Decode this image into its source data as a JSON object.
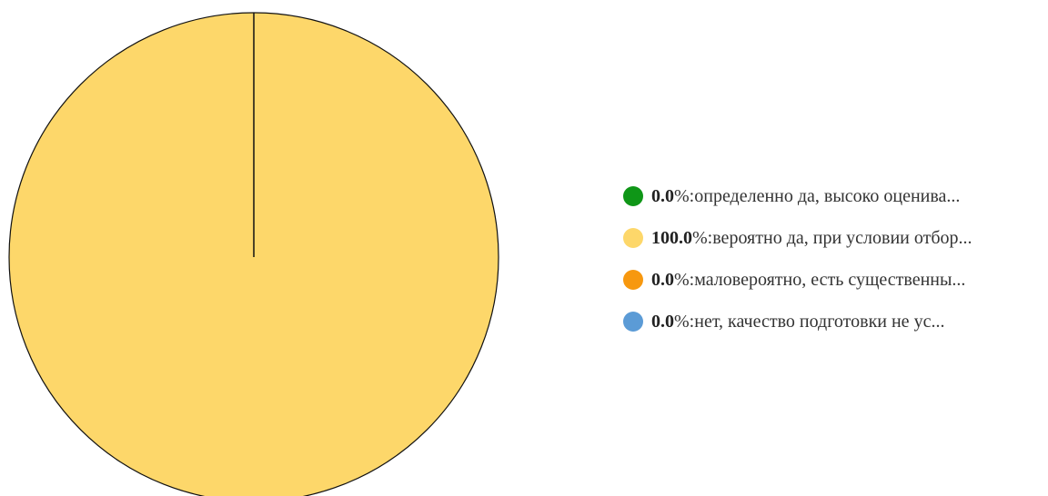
{
  "chart_data": {
    "type": "pie",
    "categories": [
      "определенно да, высоко оценива...",
      "вероятно да, при условии отбор...",
      "маловероятно, есть существенны...",
      "нет, качество подготовки не ус..."
    ],
    "values": [
      0.0,
      100.0,
      0.0,
      0.0
    ],
    "value_labels": [
      "0.0",
      "100.0",
      "0.0",
      "0.0"
    ],
    "percent_sign": "%",
    "separator": ": ",
    "colors": [
      "#0f9617",
      "#fdd76a",
      "#f7980f",
      "#5b9bd6"
    ],
    "legend_position": "right"
  }
}
